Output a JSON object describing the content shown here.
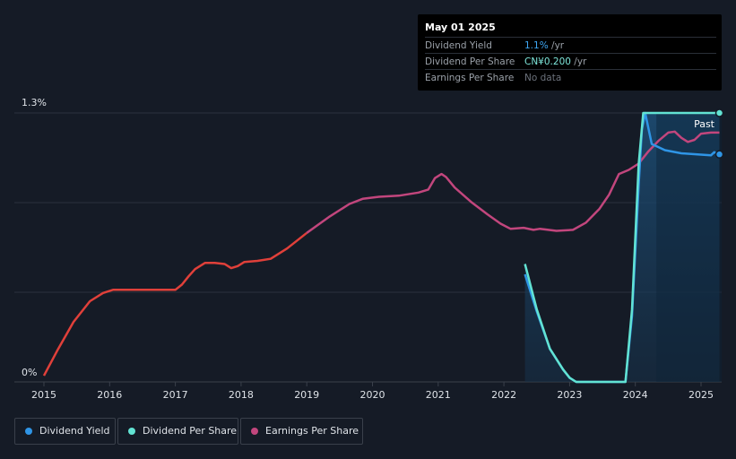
{
  "tooltip": {
    "date": "May 01 2025",
    "rows": [
      {
        "label": "Dividend Yield",
        "value": "1.1%",
        "unit": " /yr",
        "color": "#3ea6f2"
      },
      {
        "label": "Dividend Per Share",
        "value": "CN¥0.200",
        "unit": " /yr",
        "color": "#7fe8dc"
      },
      {
        "label": "Earnings Per Share",
        "value": "No data",
        "unit": "",
        "color": "#6c727c"
      }
    ]
  },
  "past_label": "Past",
  "colors": {
    "background": "#151b26",
    "grid": "#2c323d",
    "dividend_yield": "#2f95e6",
    "dividend_per_share": "#62e3d3",
    "earnings_per_share": "#c2467d",
    "earnings_early": "#e0403a",
    "forecast_fill": "#1b3f5e"
  },
  "legend": [
    {
      "label": "Dividend Yield",
      "color": "#2f95e6"
    },
    {
      "label": "Dividend Per Share",
      "color": "#62e3d3"
    },
    {
      "label": "Earnings Per Share",
      "color": "#c2467d"
    }
  ],
  "chart_data": {
    "type": "line",
    "y_ticks": [
      "0%",
      "1.3%"
    ],
    "x_ticks": [
      "2015",
      "2016",
      "2017",
      "2018",
      "2019",
      "2020",
      "2021",
      "2022",
      "2023",
      "2024",
      "2025"
    ],
    "ylim": [
      0,
      1.3
    ],
    "xlim": [
      2014.55,
      2025.3
    ],
    "series": [
      {
        "name": "Earnings Per Share",
        "points": [
          [
            2015.0,
            0.03
          ],
          [
            2015.2,
            0.15
          ],
          [
            2015.45,
            0.29
          ],
          [
            2015.7,
            0.39
          ],
          [
            2015.9,
            0.43
          ],
          [
            2016.05,
            0.445
          ],
          [
            2016.5,
            0.445
          ],
          [
            2017.0,
            0.445
          ],
          [
            2017.1,
            0.47
          ],
          [
            2017.2,
            0.51
          ],
          [
            2017.3,
            0.545
          ],
          [
            2017.45,
            0.575
          ],
          [
            2017.6,
            0.575
          ],
          [
            2017.75,
            0.57
          ],
          [
            2017.85,
            0.55
          ],
          [
            2017.95,
            0.56
          ],
          [
            2018.05,
            0.58
          ],
          [
            2018.25,
            0.585
          ],
          [
            2018.45,
            0.595
          ],
          [
            2018.7,
            0.645
          ],
          [
            2019.0,
            0.72
          ],
          [
            2019.35,
            0.8
          ],
          [
            2019.65,
            0.86
          ],
          [
            2019.85,
            0.885
          ],
          [
            2020.1,
            0.895
          ],
          [
            2020.4,
            0.9
          ],
          [
            2020.7,
            0.915
          ],
          [
            2020.85,
            0.93
          ],
          [
            2020.95,
            0.985
          ],
          [
            2021.05,
            1.005
          ],
          [
            2021.12,
            0.99
          ],
          [
            2021.25,
            0.94
          ],
          [
            2021.5,
            0.87
          ],
          [
            2021.75,
            0.81
          ],
          [
            2021.95,
            0.765
          ],
          [
            2022.1,
            0.74
          ],
          [
            2022.3,
            0.745
          ],
          [
            2022.45,
            0.735
          ],
          [
            2022.55,
            0.74
          ],
          [
            2022.8,
            0.73
          ],
          [
            2023.05,
            0.735
          ],
          [
            2023.25,
            0.77
          ],
          [
            2023.45,
            0.835
          ],
          [
            2023.6,
            0.905
          ],
          [
            2023.75,
            1.005
          ],
          [
            2023.9,
            1.025
          ],
          [
            2024.05,
            1.055
          ],
          [
            2024.2,
            1.115
          ],
          [
            2024.35,
            1.165
          ],
          [
            2024.5,
            1.205
          ],
          [
            2024.6,
            1.21
          ],
          [
            2024.7,
            1.18
          ],
          [
            2024.8,
            1.16
          ],
          [
            2024.9,
            1.17
          ],
          [
            2025.0,
            1.2
          ],
          [
            2025.15,
            1.205
          ],
          [
            2025.28,
            1.205
          ]
        ]
      },
      {
        "name": "Dividend Yield",
        "points": [
          [
            2022.32,
            0.52
          ],
          [
            2022.5,
            0.34
          ],
          [
            2022.7,
            0.16
          ],
          [
            2022.9,
            0.06
          ],
          [
            2023.0,
            0.02
          ],
          [
            2023.1,
            0.0
          ],
          [
            2023.85,
            0.0
          ],
          [
            2023.95,
            0.32
          ],
          [
            2024.05,
            0.95
          ],
          [
            2024.1,
            1.22
          ],
          [
            2024.15,
            1.3
          ],
          [
            2024.25,
            1.15
          ],
          [
            2024.45,
            1.12
          ],
          [
            2024.7,
            1.105
          ],
          [
            2024.95,
            1.1
          ],
          [
            2025.15,
            1.095
          ],
          [
            2025.2,
            1.11
          ],
          [
            2025.28,
            1.1
          ]
        ]
      },
      {
        "name": "Dividend Per Share",
        "points": [
          [
            2022.32,
            0.57
          ],
          [
            2022.5,
            0.35
          ],
          [
            2022.7,
            0.16
          ],
          [
            2022.9,
            0.06
          ],
          [
            2023.0,
            0.02
          ],
          [
            2023.1,
            0.0
          ],
          [
            2023.85,
            0.0
          ],
          [
            2023.95,
            0.35
          ],
          [
            2024.05,
            1.05
          ],
          [
            2024.12,
            1.3
          ],
          [
            2025.28,
            1.3
          ]
        ]
      }
    ]
  }
}
